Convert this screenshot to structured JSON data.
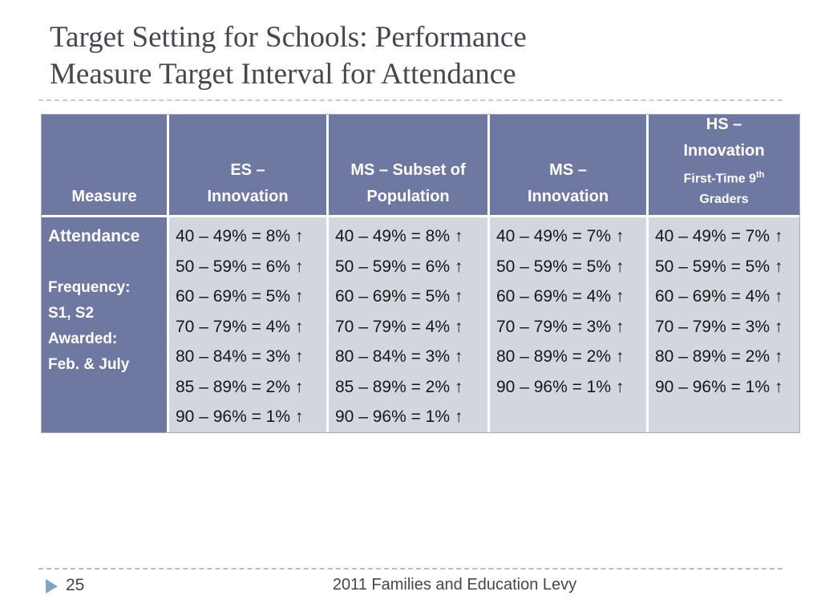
{
  "title": {
    "line1": "Target Setting for Schools: Performance",
    "line2": "Measure Target Interval for Attendance"
  },
  "table": {
    "headers": {
      "measure": {
        "lines": [
          "Measure"
        ]
      },
      "es": {
        "lines": [
          "ES –",
          "Innovation"
        ]
      },
      "ms_subset": {
        "lines": [
          "MS – Subset of",
          "Population"
        ]
      },
      "ms": {
        "lines": [
          "MS –",
          "Innovation"
        ]
      },
      "hs": {
        "lines": [
          "HS –",
          "Innovation"
        ],
        "sub_line1_main": "First-Time 9",
        "sub_line1_sup": "th",
        "sub_line2": "Graders"
      }
    },
    "measure_cell": {
      "lines": [
        "Attendance",
        "",
        "Frequency:",
        "S1, S2",
        "Awarded:",
        "Feb. & July"
      ]
    },
    "columns": {
      "es": [
        "40 – 49% = 8% ↑",
        "50 – 59% = 6% ↑",
        "60 – 69% = 5% ↑",
        "70 – 79% = 4% ↑",
        "80 – 84% = 3% ↑",
        "85 – 89% = 2% ↑",
        "90 – 96% = 1% ↑"
      ],
      "ms_subset": [
        "40 – 49% = 8% ↑",
        "50 – 59% = 6% ↑",
        "60 – 69% = 5% ↑",
        "70 – 79% = 4% ↑",
        "80 – 84% = 3% ↑",
        "85 – 89% = 2% ↑",
        "90 – 96% = 1% ↑"
      ],
      "ms": [
        "40 – 49% = 7% ↑",
        "50 – 59% = 5% ↑",
        "60 – 69% = 4% ↑",
        "70 – 79% = 3% ↑",
        "80 – 89% = 2% ↑",
        "90 – 96% = 1% ↑"
      ],
      "hs": [
        "40 – 49% = 7% ↑",
        "50 – 59% = 5% ↑",
        "60 – 69% = 4% ↑",
        "70 – 79% = 3% ↑",
        "80 – 89% = 2% ↑",
        "90 – 96% = 1% ↑"
      ]
    }
  },
  "footer": {
    "page_number": "25",
    "text": "2011 Families and Education Levy"
  },
  "colors": {
    "header_bg": "#6F78A1",
    "data_cell_bg": "#D4D6DE",
    "title_text": "#45484F",
    "footer_triangle": "#7DA7C4",
    "footer_rule": "#A5C2D6",
    "title_rule": "#C9C9C9"
  }
}
